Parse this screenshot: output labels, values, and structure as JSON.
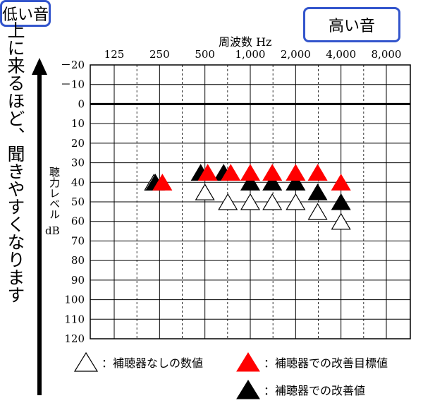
{
  "side_text": "上に来るほど、聞きやすくなります",
  "low_label": "低い音",
  "high_label": "高い音",
  "chart_data": {
    "type": "scatter",
    "title": "",
    "xlabel": "周波数 Hz",
    "ylabel": "聴力レベル",
    "ylabel_unit": "dB",
    "x_categories": [
      "125",
      "250",
      "500",
      "1,000",
      "2,000",
      "4,000",
      "8,000"
    ],
    "x_values": [
      125,
      250,
      500,
      1000,
      2000,
      4000,
      8000
    ],
    "x_scale": "log",
    "y_ticks": [
      "－20",
      "－10",
      "0",
      "10",
      "20",
      "30",
      "40",
      "50",
      "60",
      "70",
      "80",
      "90",
      "100",
      "110",
      "120"
    ],
    "ylim": [
      -20,
      120
    ],
    "y_inverted": true,
    "grid": true,
    "series": [
      {
        "name": "補聴器なしの数値",
        "marker": "open-triangle",
        "color": "#ffffff",
        "points": [
          {
            "x": 250,
            "y": 40
          },
          {
            "x": 500,
            "y": 45
          },
          {
            "x": 710,
            "y": 50
          },
          {
            "x": 1000,
            "y": 50
          },
          {
            "x": 1400,
            "y": 50
          },
          {
            "x": 2000,
            "y": 50
          },
          {
            "x": 2800,
            "y": 55
          },
          {
            "x": 4000,
            "y": 60
          }
        ]
      },
      {
        "name": "補聴器での改善値",
        "marker": "filled-triangle",
        "color": "#000000",
        "points": [
          {
            "x": 250,
            "y": 40
          },
          {
            "x": 500,
            "y": 35
          },
          {
            "x": 710,
            "y": 35
          },
          {
            "x": 1000,
            "y": 40
          },
          {
            "x": 1400,
            "y": 40
          },
          {
            "x": 2000,
            "y": 40
          },
          {
            "x": 2800,
            "y": 45
          },
          {
            "x": 4000,
            "y": 50
          }
        ]
      },
      {
        "name": "補聴器での改善目標値",
        "marker": "filled-triangle",
        "color": "#ff0000",
        "points": [
          {
            "x": 250,
            "y": 40
          },
          {
            "x": 500,
            "y": 35
          },
          {
            "x": 710,
            "y": 35
          },
          {
            "x": 1000,
            "y": 35
          },
          {
            "x": 1400,
            "y": 35
          },
          {
            "x": 2000,
            "y": 35
          },
          {
            "x": 2800,
            "y": 35
          },
          {
            "x": 4000,
            "y": 40
          }
        ]
      }
    ]
  },
  "legend": {
    "open": "：補聴器なしの数値",
    "red": "：補聴器での改善目標値",
    "black": "：補聴器での改善値"
  }
}
